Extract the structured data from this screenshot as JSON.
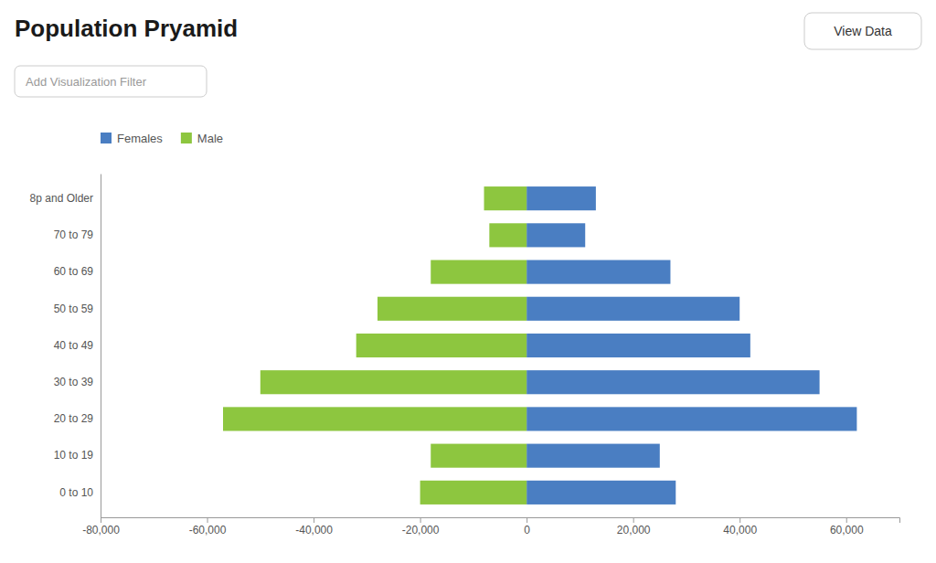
{
  "chart_data": {
    "type": "bar",
    "orientation": "horizontal",
    "title": "Population Pryamid",
    "annotations": [
      "Add Visualization Filter",
      "View Data"
    ],
    "categories": [
      "8p and Older",
      "70 to 79",
      "60 to 69",
      "50 to 59",
      "40 to 49",
      "30 to 39",
      "20 to 29",
      "10 to 19",
      "0 to 10"
    ],
    "series": [
      {
        "name": "Females",
        "color": "#4a7ec2",
        "values": [
          13000,
          11000,
          27000,
          40000,
          42000,
          55000,
          62000,
          25000,
          28000
        ]
      },
      {
        "name": "Male",
        "color": "#8dc63f",
        "values": [
          -8000,
          -7000,
          -18000,
          -28000,
          -32000,
          -50000,
          -57000,
          -18000,
          -20000
        ]
      }
    ],
    "xlim": [
      -80000,
      70000
    ],
    "xticks": [
      {
        "value": -80000,
        "label": "-80,000"
      },
      {
        "value": -60000,
        "label": "-60,000"
      },
      {
        "value": -40000,
        "label": "-40,000"
      },
      {
        "value": -20000,
        "label": "-20,000"
      },
      0,
      {
        "value": 20000,
        "label": "20,000"
      },
      {
        "value": 40000,
        "label": "40,000"
      },
      {
        "value": 60000,
        "label": "60,000"
      }
    ],
    "grid": false,
    "legend": "upper left"
  }
}
